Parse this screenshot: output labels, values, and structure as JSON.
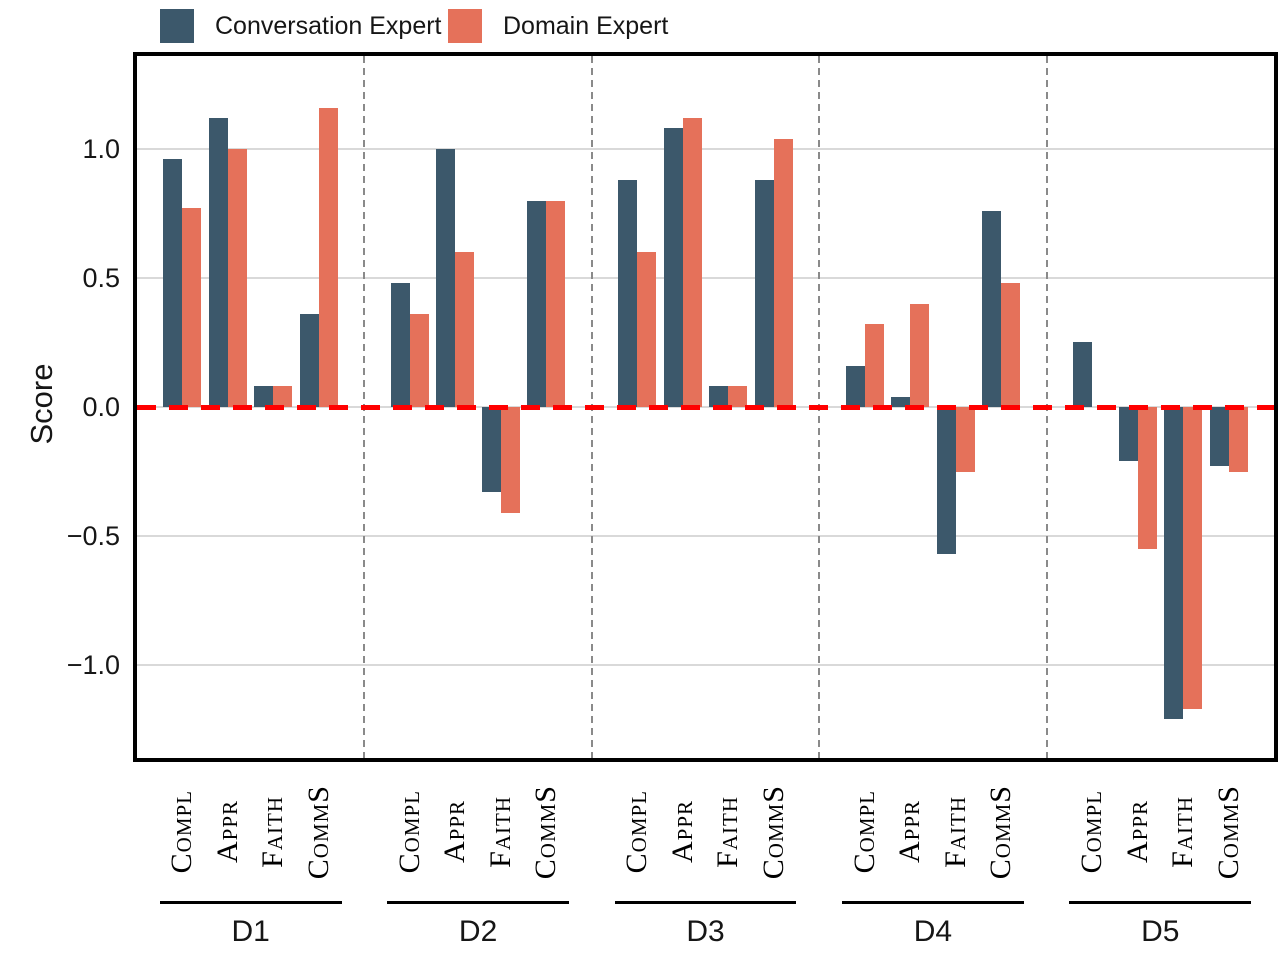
{
  "chart_data": {
    "type": "bar",
    "title": "",
    "ylabel": "Score",
    "ylim": [
      -1.36,
      1.36
    ],
    "yticks": [
      1.0,
      0.5,
      0.0,
      -0.5,
      -1.0
    ],
    "ytick_labels": [
      "1.0",
      "0.5",
      "0.0",
      "−0.5",
      "−1.0"
    ],
    "grid": true,
    "legend_position": "top-left",
    "zero_line": {
      "y": 0,
      "color": "#ff0000",
      "style": "dashed"
    },
    "groups": [
      "D1",
      "D2",
      "D3",
      "D4",
      "D5"
    ],
    "categories": [
      "Compl",
      "Appr",
      "Faith",
      "CommS"
    ],
    "series": [
      {
        "name": "Conversation Expert",
        "color": "#3c586b",
        "values": [
          [
            0.96,
            1.12,
            0.08,
            0.36
          ],
          [
            0.48,
            1.0,
            -0.33,
            0.8
          ],
          [
            0.88,
            1.08,
            0.08,
            0.88
          ],
          [
            0.16,
            0.04,
            -0.57,
            0.76
          ],
          [
            0.25,
            -0.21,
            -1.21,
            -0.23
          ]
        ]
      },
      {
        "name": "Domain Expert",
        "color": "#e5715a",
        "values": [
          [
            0.77,
            1.0,
            0.08,
            1.16
          ],
          [
            0.36,
            0.6,
            -0.41,
            0.8
          ],
          [
            0.6,
            1.12,
            0.08,
            1.04
          ],
          [
            0.32,
            0.4,
            -0.25,
            0.48
          ],
          [
            0.0,
            -0.55,
            -1.17,
            -0.25
          ]
        ]
      }
    ],
    "style_colors": {
      "grid": "#d9d9d9",
      "separator": "#8a8a8a",
      "spine": "#000000"
    }
  }
}
